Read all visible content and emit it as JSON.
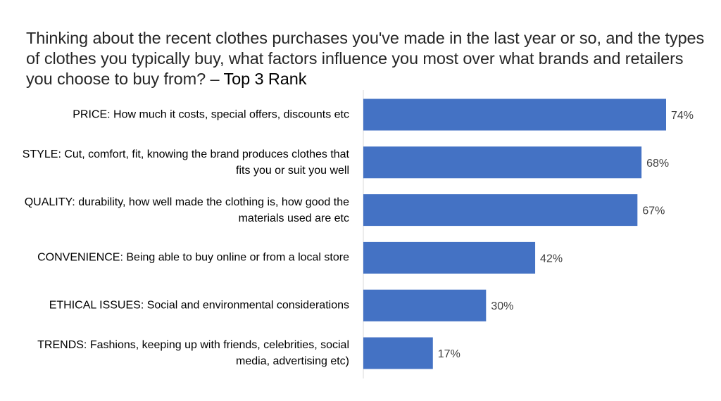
{
  "title": {
    "main": "Thinking about the recent clothes purchases you've made in the last year or so, and the types of clothes you typically buy, what factors influence you most over what brands and retailers you choose to buy from? –",
    "emphasis": "Top 3 Rank"
  },
  "chart_data": {
    "type": "bar",
    "orientation": "horizontal",
    "title": "Thinking about the recent clothes purchases you've made in the last year or so, and the types of clothes you typically buy, what factors influence you most over what brands and retailers you choose to buy from? – Top 3 Rank",
    "categories": [
      "PRICE: How much it costs, special offers, discounts etc",
      "STYLE: Cut, comfort, fit, knowing the brand produces clothes that fits you or suit you well",
      "QUALITY: durability, how well made the clothing is, how good the materials used are etc",
      "CONVENIENCE: Being able to buy online or from a local store",
      "ETHICAL ISSUES: Social and environmental considerations",
      "TRENDS: Fashions, keeping up with friends, celebrities, social media, advertising etc)"
    ],
    "values": [
      74,
      68,
      67,
      42,
      30,
      17
    ],
    "value_labels": [
      "74%",
      "68%",
      "67%",
      "42%",
      "30%",
      "17%"
    ],
    "unit": "%",
    "bar_color": "#4472C4",
    "xlim": [
      0,
      74
    ],
    "grid": false,
    "legend": "none"
  }
}
